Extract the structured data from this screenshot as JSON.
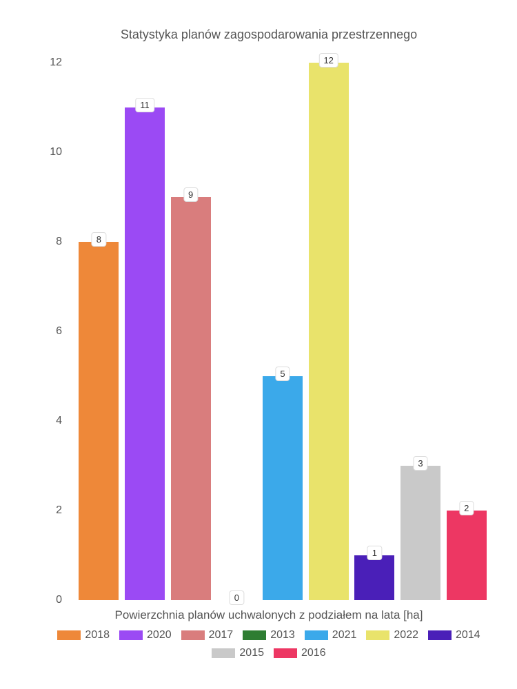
{
  "chart": {
    "type": "bar",
    "title": "Statystyka planów zagospodarowania przestrzennego",
    "title_fontsize": 18,
    "xlabel": "Powierzchnia planów uchwalonych z podziałem na lata [ha]",
    "label_fontsize": 17,
    "ylim": [
      0,
      12
    ],
    "ytick_step": 2,
    "yticks": [
      0,
      2,
      4,
      6,
      8,
      10,
      12
    ],
    "background_color": "#ffffff",
    "text_color": "#555555",
    "label_bg": "#ffffff",
    "label_border": "#dddddd",
    "bar_width": 0.85,
    "series": [
      {
        "year": "2018",
        "value": 8,
        "color": "#ee8839"
      },
      {
        "year": "2020",
        "value": 11,
        "color": "#9b4af4"
      },
      {
        "year": "2017",
        "value": 9,
        "color": "#d97d7d"
      },
      {
        "year": "2013",
        "value": 0,
        "color": "#2e7d32"
      },
      {
        "year": "2021",
        "value": 5,
        "color": "#3ba9ea"
      },
      {
        "year": "2022",
        "value": 12,
        "color": "#e9e36b"
      },
      {
        "year": "2014",
        "value": 1,
        "color": "#4a1fb8"
      },
      {
        "year": "2015",
        "value": 3,
        "color": "#c9c9c9"
      },
      {
        "year": "2016",
        "value": 2,
        "color": "#ed3763"
      }
    ],
    "legend_order": [
      "2018",
      "2020",
      "2017",
      "2013",
      "2021",
      "2022",
      "2014",
      "2015",
      "2016"
    ]
  }
}
